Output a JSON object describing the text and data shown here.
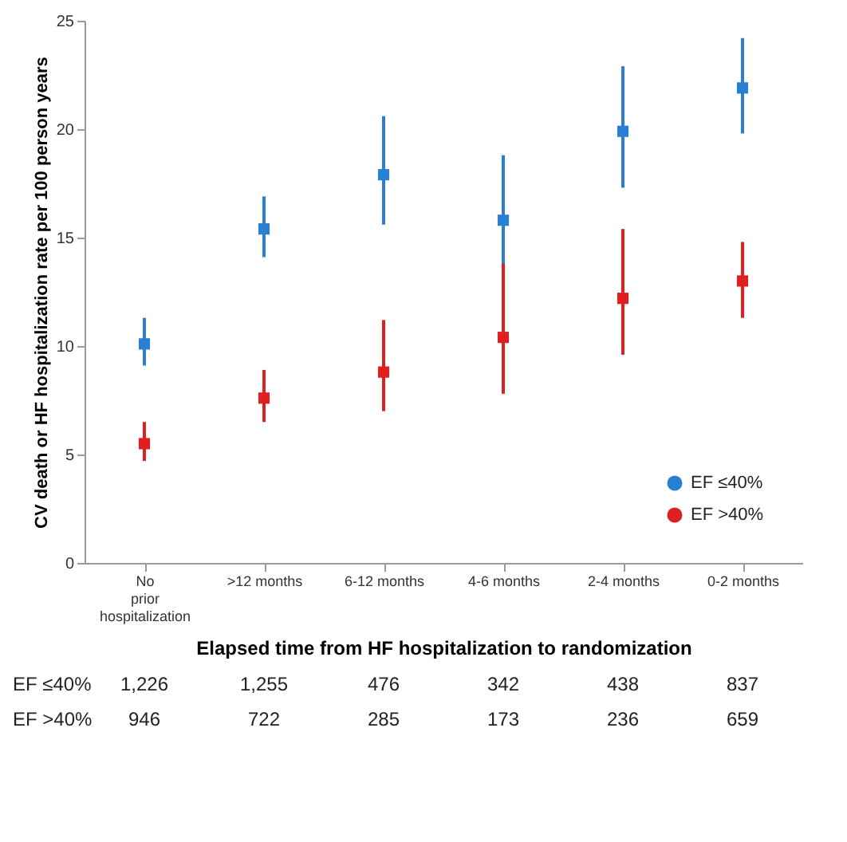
{
  "chart_data": {
    "type": "scatter",
    "xlabel": "Elapsed time from HF hospitalization to randomization",
    "ylabel": "CV death or HF hospitalization rate per 100 person years",
    "categories": [
      "No prior hospitalization",
      ">12 months",
      "6-12 months",
      "4-6 months",
      "2-4 months",
      "0-2 months"
    ],
    "series": [
      {
        "name": "EF ≤40%",
        "color": "#2a7fd4",
        "values": [
          10.1,
          15.4,
          17.9,
          15.8,
          19.9,
          21.9
        ],
        "errors": [
          [
            9.1,
            11.3
          ],
          [
            14.1,
            16.9
          ],
          [
            15.6,
            20.6
          ],
          [
            13.4,
            18.8
          ],
          [
            17.3,
            22.9
          ],
          [
            19.8,
            24.2
          ]
        ]
      },
      {
        "name": "EF >40%",
        "color": "#e02020",
        "values": [
          5.5,
          7.6,
          8.8,
          10.4,
          12.2,
          13.0
        ],
        "errors": [
          [
            4.7,
            6.5
          ],
          [
            6.5,
            8.9
          ],
          [
            7.0,
            11.2
          ],
          [
            7.8,
            13.8
          ],
          [
            9.6,
            15.4
          ],
          [
            11.3,
            14.8
          ]
        ]
      }
    ],
    "ylim": [
      0,
      25
    ],
    "yticks": [
      0,
      5,
      10,
      15,
      20,
      25
    ],
    "grid": false,
    "legend": "bottom right",
    "marker": "square",
    "annotations": [
      "EF ≤40%",
      "1,226",
      "1,255",
      "476",
      "342",
      "438",
      "837",
      "EF >40%",
      "946",
      "722",
      "285",
      "173",
      "236",
      "659"
    ]
  }
}
